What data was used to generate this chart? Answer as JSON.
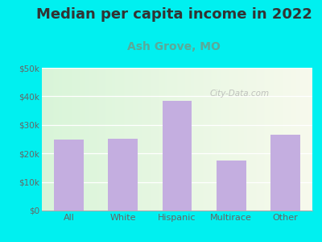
{
  "title": "Median per capita income in 2022",
  "subtitle": "Ash Grove, MO",
  "categories": [
    "All",
    "White",
    "Hispanic",
    "Multirace",
    "Other"
  ],
  "values": [
    25000,
    25200,
    38500,
    17500,
    26500
  ],
  "bar_color": "#c4aee0",
  "title_fontsize": 13,
  "subtitle_fontsize": 10,
  "subtitle_color": "#5aaa99",
  "title_color": "#333333",
  "tick_color": "#666666",
  "ylim": [
    0,
    50000
  ],
  "yticks": [
    0,
    10000,
    20000,
    30000,
    40000,
    50000
  ],
  "ytick_labels": [
    "$0",
    "$10k",
    "$20k",
    "$30k",
    "$40k",
    "$50k"
  ],
  "bg_outer": "#00f0f0",
  "watermark": "City-Data.com"
}
